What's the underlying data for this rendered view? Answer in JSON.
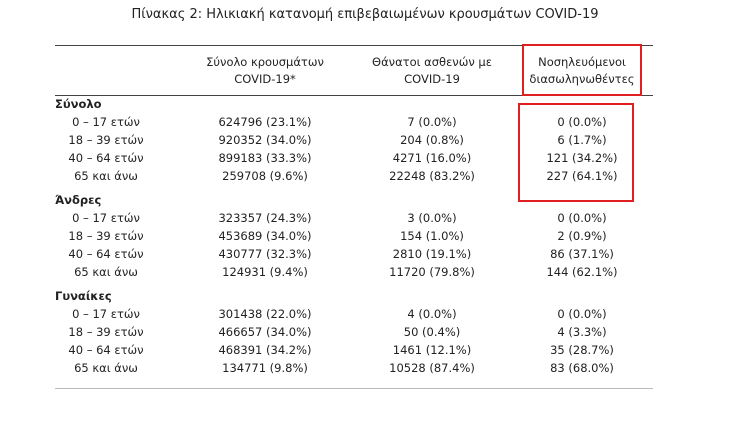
{
  "title": "Πίνακας 2: Ηλικιακή κατανομή επιβεβαιωμένων κρουσμάτων COVID-19",
  "table": {
    "headers": [
      "Σύνολο κρουσμάτων COVID-19*",
      "Θάνατοι ασθενών με COVID-19",
      "Νοσηλευόμενοι διασωληνωθέντες"
    ],
    "groups": [
      {
        "name": "Σύνολο",
        "rows": [
          [
            "0 – 17 ετών",
            "624796 (23.1%)",
            "7 (0.0%)",
            "0 (0.0%)"
          ],
          [
            "18 – 39 ετών",
            "920352 (34.0%)",
            "204 (0.8%)",
            "6 (1.7%)"
          ],
          [
            "40 – 64 ετών",
            "899183 (33.3%)",
            "4271 (16.0%)",
            "121 (34.2%)"
          ],
          [
            "65 και άνω",
            "259708 (9.6%)",
            "22248 (83.2%)",
            "227 (64.1%)"
          ]
        ]
      },
      {
        "name": "Άνδρες",
        "rows": [
          [
            "0 – 17 ετών",
            "323357 (24.3%)",
            "3 (0.0%)",
            "0 (0.0%)"
          ],
          [
            "18 – 39 ετών",
            "453689 (34.0%)",
            "154 (1.0%)",
            "2 (0.9%)"
          ],
          [
            "40 – 64 ετών",
            "430777 (32.3%)",
            "2810 (19.1%)",
            "86 (37.1%)"
          ],
          [
            "65 και άνω",
            "124931 (9.4%)",
            "11720 (79.8%)",
            "144 (62.1%)"
          ]
        ]
      },
      {
        "name": "Γυναίκες",
        "rows": [
          [
            "0 – 17 ετών",
            "301438 (22.0%)",
            "4 (0.0%)",
            "0 (0.0%)"
          ],
          [
            "18 – 39 ετών",
            "466657 (34.0%)",
            "50 (0.4%)",
            "4 (3.3%)"
          ],
          [
            "40 – 64 ετών",
            "468391 (34.2%)",
            "1461 (12.1%)",
            "35 (28.7%)"
          ],
          [
            "65 και άνω",
            "134771 (9.8%)",
            "10528 (87.4%)",
            "83 (68.0%)"
          ]
        ]
      }
    ]
  }
}
